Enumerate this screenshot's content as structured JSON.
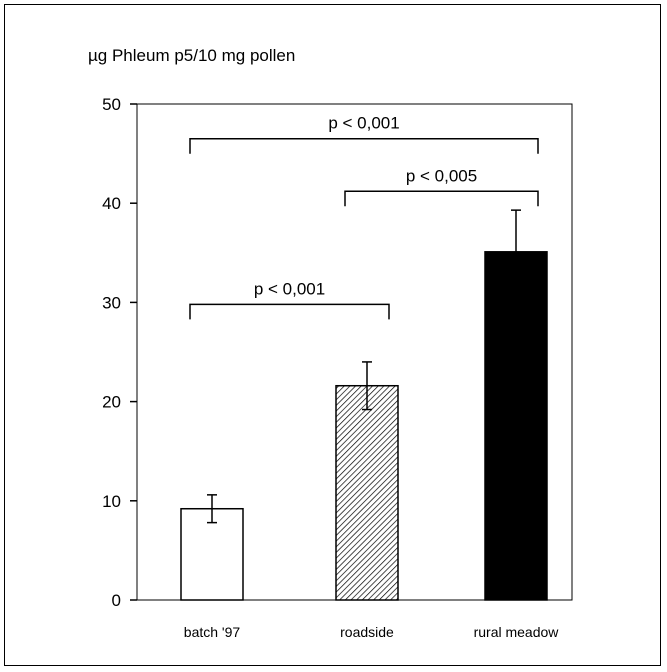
{
  "chart_data": {
    "type": "bar",
    "title": "",
    "ylabel": "µg Phleum p5/10 mg pollen",
    "xlabel": "",
    "categories": [
      "batch '97",
      "roadside",
      "rural meadow"
    ],
    "values": [
      9.2,
      21.6,
      35.1
    ],
    "errors": [
      1.4,
      2.4,
      4.2
    ],
    "ylim": [
      0,
      50
    ],
    "yticks": [
      "0",
      "10",
      "20",
      "30",
      "40",
      "50"
    ],
    "grid": false,
    "bar_fills": [
      "white",
      "hatched",
      "black"
    ],
    "comparisons": [
      {
        "from": 0,
        "to": 2,
        "label": "p < 0,001",
        "level": 46.5
      },
      {
        "from": 1,
        "to": 2,
        "label": "p < 0,005",
        "level": 41.2
      },
      {
        "from": 0,
        "to": 1,
        "label": "p < 0,001",
        "level": 29.8
      }
    ]
  },
  "colors": {
    "ink": "#000000",
    "bar_solid": "#000000",
    "bar_open": "#ffffff"
  }
}
